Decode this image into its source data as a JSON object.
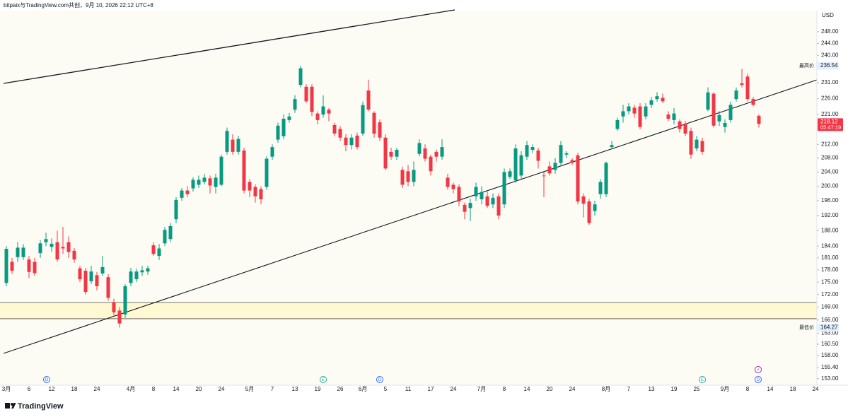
{
  "header": "bitpaix与TradingView.com共创，9月 10, 2026 22:12 UTC+8",
  "logo": "TradingView",
  "chart_data": {
    "type": "candlestick",
    "currency": "USD",
    "log": true,
    "grid": false,
    "up_color": "#089981",
    "down_color": "#f23645",
    "ylim": [
      151.6,
      255.4
    ],
    "yticks": [
      {
        "value": 248,
        "label": "248.00"
      },
      {
        "value": 244,
        "label": "244.00"
      },
      {
        "value": 240,
        "label": "240.00"
      },
      {
        "value": 231,
        "label": "231.00"
      },
      {
        "value": 226,
        "label": "226.00"
      },
      {
        "value": 221,
        "label": "221.00"
      },
      {
        "value": 212,
        "label": "212.00"
      },
      {
        "value": 208,
        "label": "208.00"
      },
      {
        "value": 204,
        "label": "204.00"
      },
      {
        "value": 200,
        "label": "200.00"
      },
      {
        "value": 196,
        "label": "196.00"
      },
      {
        "value": 192,
        "label": "192.00"
      },
      {
        "value": 188,
        "label": "188.00"
      },
      {
        "value": 184,
        "label": "184.00"
      },
      {
        "value": 181,
        "label": "181.00"
      },
      {
        "value": 178,
        "label": "178.00"
      },
      {
        "value": 175,
        "label": "175.00"
      },
      {
        "value": 172,
        "label": "172.00"
      },
      {
        "value": 169,
        "label": "169.00"
      },
      {
        "value": 166,
        "label": "166.00"
      },
      {
        "value": 163,
        "label": "163.00"
      },
      {
        "value": 160.5,
        "label": "160.50"
      },
      {
        "value": 158,
        "label": "158.00"
      },
      {
        "value": 155.4,
        "label": "155.40"
      },
      {
        "value": 153,
        "label": "153.00"
      }
    ],
    "high_mark": {
      "label": "最高价",
      "value": 236.54
    },
    "low_mark": {
      "label": "最低价",
      "value": 164.27
    },
    "last": {
      "value": 218.12,
      "countdown": "05:47:19"
    },
    "zone": [
      166.3,
      170.1
    ],
    "events": [
      "D",
      "E",
      "D",
      "E",
      "D",
      "⚡"
    ],
    "categories": [
      "3月",
      null,
      null,
      null,
      "6",
      null,
      null,
      null,
      "12",
      null,
      null,
      null,
      "18",
      null,
      null,
      null,
      "24",
      null,
      null,
      null,
      null,
      null,
      "4月",
      null,
      null,
      null,
      "8",
      null,
      null,
      null,
      "14",
      null,
      null,
      null,
      "20",
      null,
      null,
      null,
      "24",
      null,
      null,
      null,
      null,
      "5月",
      null,
      null,
      null,
      "7",
      null,
      null,
      null,
      "13",
      null,
      null,
      null,
      "19",
      null,
      null,
      null,
      "26",
      null,
      null,
      null,
      "6月",
      null,
      null,
      null,
      "5",
      null,
      null,
      null,
      "11",
      null,
      null,
      null,
      "17",
      null,
      null,
      null,
      "24",
      null,
      null,
      null,
      null,
      "7月",
      null,
      null,
      null,
      "8",
      null,
      null,
      null,
      "14",
      null,
      null,
      null,
      "20",
      null,
      null,
      null,
      "24",
      null,
      null,
      null,
      null,
      null,
      "8月",
      null,
      null,
      null,
      "7",
      null,
      null,
      null,
      "13",
      null,
      null,
      null,
      "19",
      null,
      null,
      null,
      "25",
      null,
      null,
      null,
      null,
      "9月",
      null,
      null,
      null,
      "8",
      null,
      null,
      null,
      "14",
      null,
      null,
      null,
      "18",
      null,
      null,
      null,
      "24"
    ],
    "open": [
      174.8,
      180,
      181.2,
      181.2,
      180.6,
      180,
      182.2,
      185,
      183.8,
      185,
      183.8,
      185,
      182.8,
      178.4,
      177.8,
      175.2,
      176.7,
      177.1,
      176.2,
      170.2,
      168.2,
      167.3,
      174.8,
      175.7,
      177.4,
      177.6,
      184.2,
      181.5,
      184.7,
      185.8,
      191,
      196.8,
      198.8,
      199.4,
      200.4,
      201.2,
      202.2,
      199.8,
      200.4,
      209.8,
      213.4,
      209.8,
      210.2,
      201.2,
      199.8,
      199.2,
      199.8,
      208.4,
      213.4,
      214.4,
      219.3,
      222.5,
      230.3,
      229.7,
      229.7,
      221.3,
      221,
      222.5,
      217.8,
      216.6,
      214,
      211.8,
      214.6,
      215.2,
      228.5,
      221.5,
      218.6,
      214,
      209.8,
      208.4,
      204.6,
      204.2,
      201.2,
      209.2,
      210.8,
      208.4,
      209.8,
      208.4,
      202.4,
      200.4,
      199.8,
      194.9,
      194,
      197.2,
      196.4,
      197.2,
      195,
      197.2,
      195,
      202.6,
      201.6,
      203,
      208.4,
      210.4,
      210.2,
      203,
      205.6,
      204.6,
      206.6,
      209,
      207.4,
      208.8,
      197.2,
      195.8,
      193.2,
      197.8,
      197.8,
      211.2,
      216.6,
      220.4,
      222,
      223.1,
      223.5,
      220.4,
      224,
      225.8,
      226.2,
      221,
      219.3,
      218.9,
      218.2,
      216,
      210.8,
      213,
      222.5,
      227.5,
      218.9,
      217.2,
      219.3,
      225.8,
      230.8,
      233,
      225.8,
      220.6,
      null,
      null,
      null,
      null,
      null,
      null,
      null,
      null,
      null,
      null
    ],
    "high": [
      184,
      181,
      185,
      184.5,
      181.5,
      181,
      185.5,
      187.5,
      186,
      188,
      189,
      186.5,
      183.5,
      179,
      178.5,
      179,
      177.5,
      181.5,
      177,
      171,
      169,
      174.5,
      178.5,
      178.3,
      179,
      179,
      185,
      184.5,
      189,
      190,
      197,
      199.5,
      200,
      202.5,
      203,
      203.5,
      203,
      203.5,
      209,
      217,
      215,
      214.5,
      211,
      202,
      200.5,
      200,
      208.5,
      212,
      218.5,
      221,
      221.5,
      227,
      236.54,
      230.5,
      230.5,
      222,
      227,
      223,
      218.5,
      217.5,
      215,
      215,
      215.5,
      225,
      232,
      222,
      219.5,
      215,
      211,
      211,
      205.5,
      206,
      207,
      213.5,
      212,
      209,
      210.5,
      213.5,
      203.5,
      201,
      200.5,
      195.5,
      196.5,
      201,
      200,
      198.5,
      198,
      198,
      205,
      205,
      212,
      210,
      213,
      212,
      211,
      204,
      207,
      208,
      213,
      210,
      208,
      209.5,
      198,
      196.5,
      196,
      202,
      207,
      213,
      220,
      224,
      224.5,
      224,
      224.5,
      224.5,
      226.5,
      228,
      227.5,
      222,
      223,
      219.5,
      219,
      217,
      214.5,
      214,
      229.5,
      228,
      222,
      219.5,
      225,
      229.5,
      235.5,
      234,
      226.5,
      221,
      null,
      null,
      null,
      null,
      null,
      null,
      null,
      null,
      null,
      null
    ],
    "low": [
      174,
      177,
      180,
      180.5,
      176,
      176.5,
      181,
      184,
      182.5,
      180,
      182,
      181,
      179.8,
      175,
      172,
      174.5,
      173,
      176.5,
      170.5,
      167,
      164.27,
      166.5,
      174,
      175,
      176.5,
      176.8,
      181.5,
      180.5,
      184,
      185,
      190,
      196,
      197,
      198.5,
      199.5,
      200.5,
      198,
      198,
      200,
      209,
      209,
      209,
      198,
      197,
      195.5,
      195,
      199,
      207.5,
      212.5,
      213.5,
      218.5,
      221.5,
      229.5,
      224.5,
      220.5,
      218,
      220,
      219,
      214.5,
      213,
      210,
      210.5,
      210.5,
      214.5,
      222,
      214,
      213,
      204.5,
      207.5,
      207.5,
      199.5,
      200,
      200,
      208.5,
      207,
      203,
      207,
      207.5,
      199,
      198,
      194.5,
      191,
      190.5,
      196,
      195,
      194,
      194,
      191,
      194,
      202,
      201,
      202,
      207.5,
      209.5,
      205,
      197,
      203,
      203.5,
      206,
      208,
      206,
      195,
      191.5,
      189.5,
      192,
      196.5,
      197,
      210.5,
      216,
      218.5,
      221,
      220,
      216.5,
      219.5,
      223,
      225,
      224.5,
      219,
      218,
      215.5,
      214.5,
      207.8,
      210,
      209,
      222,
      217,
      217.5,
      215.5,
      218.5,
      225,
      229.5,
      225,
      223.5,
      217,
      null,
      null,
      null,
      null,
      null,
      null,
      null,
      null,
      null,
      null
    ],
    "close": [
      183.3,
      177.8,
      183.6,
      183.6,
      177.5,
      177.2,
      184.7,
      185.8,
      184.6,
      180.6,
      183.4,
      182.5,
      180.6,
      175.7,
      172.6,
      177.6,
      174,
      178.7,
      171.2,
      167.8,
      165.2,
      174,
      177.6,
      177.6,
      177.9,
      178.4,
      182,
      183.4,
      188.2,
      189.2,
      196.2,
      198.8,
      197.8,
      201.8,
      201.8,
      202.4,
      200.2,
      202.4,
      208.4,
      216,
      209.8,
      213.6,
      198.8,
      198.8,
      197.2,
      196.4,
      207.8,
      211.2,
      217.6,
      219.7,
      220.4,
      225.8,
      235.7,
      225.1,
      221.8,
      219.3,
      223.5,
      221.3,
      215.2,
      214,
      211.8,
      214,
      211.2,
      223.9,
      222.5,
      215.2,
      214,
      205,
      208.4,
      210.4,
      200.4,
      201.2,
      204.6,
      212.4,
      207.8,
      204.2,
      208.4,
      211.2,
      199.8,
      199.2,
      195.8,
      193,
      195.4,
      199.8,
      198.4,
      194.6,
      196.8,
      192,
      204,
      204.2,
      210.8,
      208.8,
      211.8,
      211.2,
      207.2,
      202.8,
      203.6,
      206.6,
      211.8,
      209.4,
      206.6,
      195.8,
      195.2,
      190,
      195,
      201.2,
      206.6,
      211.8,
      219.3,
      222,
      223.5,
      221.3,
      217.2,
      223.5,
      225.4,
      226.7,
      225.1,
      219.7,
      221.3,
      216.6,
      215.2,
      209,
      213.4,
      209.8,
      227.9,
      217.6,
      220.8,
      218.4,
      224,
      228.5,
      230.3,
      225.8,
      224,
      218.12,
      null,
      null,
      null,
      null,
      null,
      null,
      null,
      null,
      null,
      null
    ]
  }
}
